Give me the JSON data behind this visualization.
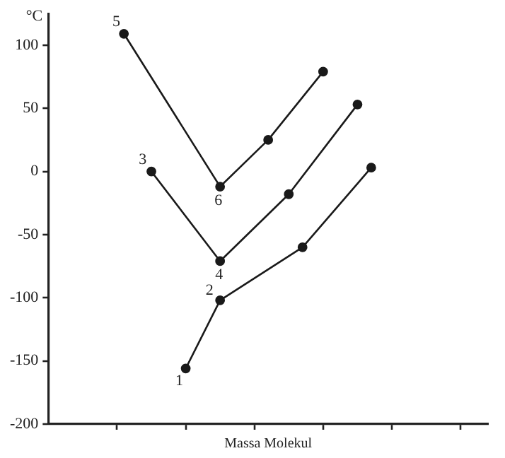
{
  "chart_data": {
    "type": "line",
    "xlabel": "Massa Molekul",
    "ylabel": "°C",
    "categories": [
      null,
      null,
      null,
      null,
      null,
      null,
      null,
      null,
      null,
      null,
      null,
      null,
      null,
      null,
      null,
      null,
      null,
      null,
      null,
      null,
      null,
      null,
      null,
      null,
      null,
      null,
      null,
      null,
      null,
      null,
      null,
      null,
      null,
      null,
      null,
      null,
      null,
      null,
      null,
      null,
      null,
      null,
      null,
      null,
      null,
      null,
      null,
      null,
      null,
      null,
      null,
      null,
      null,
      null,
      null,
      null,
      null,
      null,
      null,
      null,
      null,
      null,
      null,
      null,
      null
    ],
    "ylim": [
      -200,
      125
    ],
    "yticks": [
      -200,
      -150,
      -100,
      -50,
      0,
      50,
      100
    ],
    "tick_labels": "y",
    "grid": false,
    "legend": false,
    "marker": "circle",
    "line_style": "solid",
    "series": [
      {
        "color": "#1a1a1a",
        "values": [
          null,
          null,
          null,
          null,
          null,
          null,
          null,
          null,
          null,
          null,
          null,
          109,
          null,
          null,
          null,
          null,
          null,
          null,
          null,
          null,
          null,
          null,
          null,
          null,
          null,
          -12,
          null,
          null,
          null,
          null,
          null,
          null,
          25,
          null,
          null,
          null,
          null,
          null,
          null,
          null,
          79,
          null,
          null,
          null,
          null,
          null,
          null,
          null,
          null,
          null,
          null,
          null,
          null,
          null,
          null,
          null,
          null,
          null,
          null,
          null,
          null,
          null,
          null,
          null,
          null
        ]
      },
      {
        "color": "#1a1a1a",
        "values": [
          null,
          null,
          null,
          null,
          null,
          null,
          null,
          null,
          null,
          null,
          null,
          null,
          null,
          null,
          null,
          0,
          null,
          null,
          null,
          null,
          null,
          null,
          null,
          null,
          null,
          -71,
          null,
          null,
          null,
          null,
          null,
          null,
          null,
          null,
          null,
          -18,
          null,
          null,
          null,
          null,
          null,
          null,
          null,
          null,
          null,
          53,
          null,
          null,
          null,
          null,
          null,
          null,
          null,
          null,
          null,
          null,
          null,
          null,
          null,
          null,
          null,
          null,
          null,
          null,
          null
        ]
      },
      {
        "color": "#1a1a1a",
        "values": [
          null,
          null,
          null,
          null,
          null,
          null,
          null,
          null,
          null,
          null,
          null,
          null,
          null,
          null,
          null,
          null,
          null,
          null,
          null,
          null,
          -156,
          null,
          null,
          null,
          null,
          -102,
          null,
          null,
          null,
          null,
          null,
          null,
          null,
          null,
          null,
          null,
          null,
          -60,
          null,
          null,
          null,
          null,
          null,
          null,
          null,
          null,
          null,
          3,
          null,
          null,
          null,
          null,
          null,
          null,
          null,
          null,
          null,
          null,
          null,
          null,
          null,
          null,
          null,
          null,
          null
        ]
      }
    ],
    "annotations": [
      {
        "text": "1",
        "y": -156
      },
      {
        "text": "2",
        "y": -102
      },
      {
        "text": "3",
        "y": 0
      },
      {
        "text": "4",
        "y": -71
      },
      {
        "text": "5",
        "y": 109
      },
      {
        "text": "6",
        "y": -12
      }
    ]
  }
}
